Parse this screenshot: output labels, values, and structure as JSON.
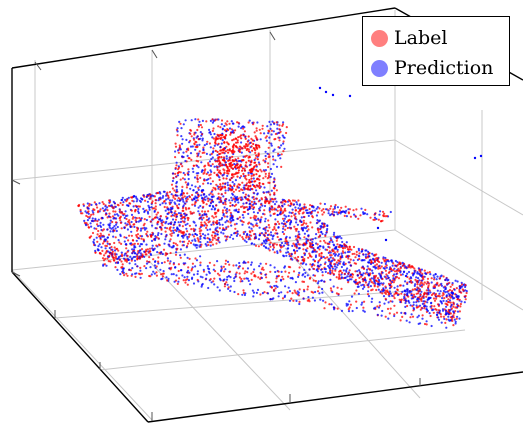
{
  "chart_data": {
    "type": "scatter",
    "title": "",
    "xlabel": "",
    "ylabel": "",
    "zlabel": "",
    "projection": "3d",
    "grid": true,
    "legend_position": "top-right",
    "series": [
      {
        "name": "Label",
        "color": "#ff0000",
        "legend_color": "#ff7f7f",
        "marker": "circle",
        "shape": "airplane point cloud"
      },
      {
        "name": "Prediction",
        "color": "#0000ff",
        "legend_color": "#7f7fff",
        "marker": "circle",
        "shape": "airplane point cloud"
      }
    ]
  }
}
